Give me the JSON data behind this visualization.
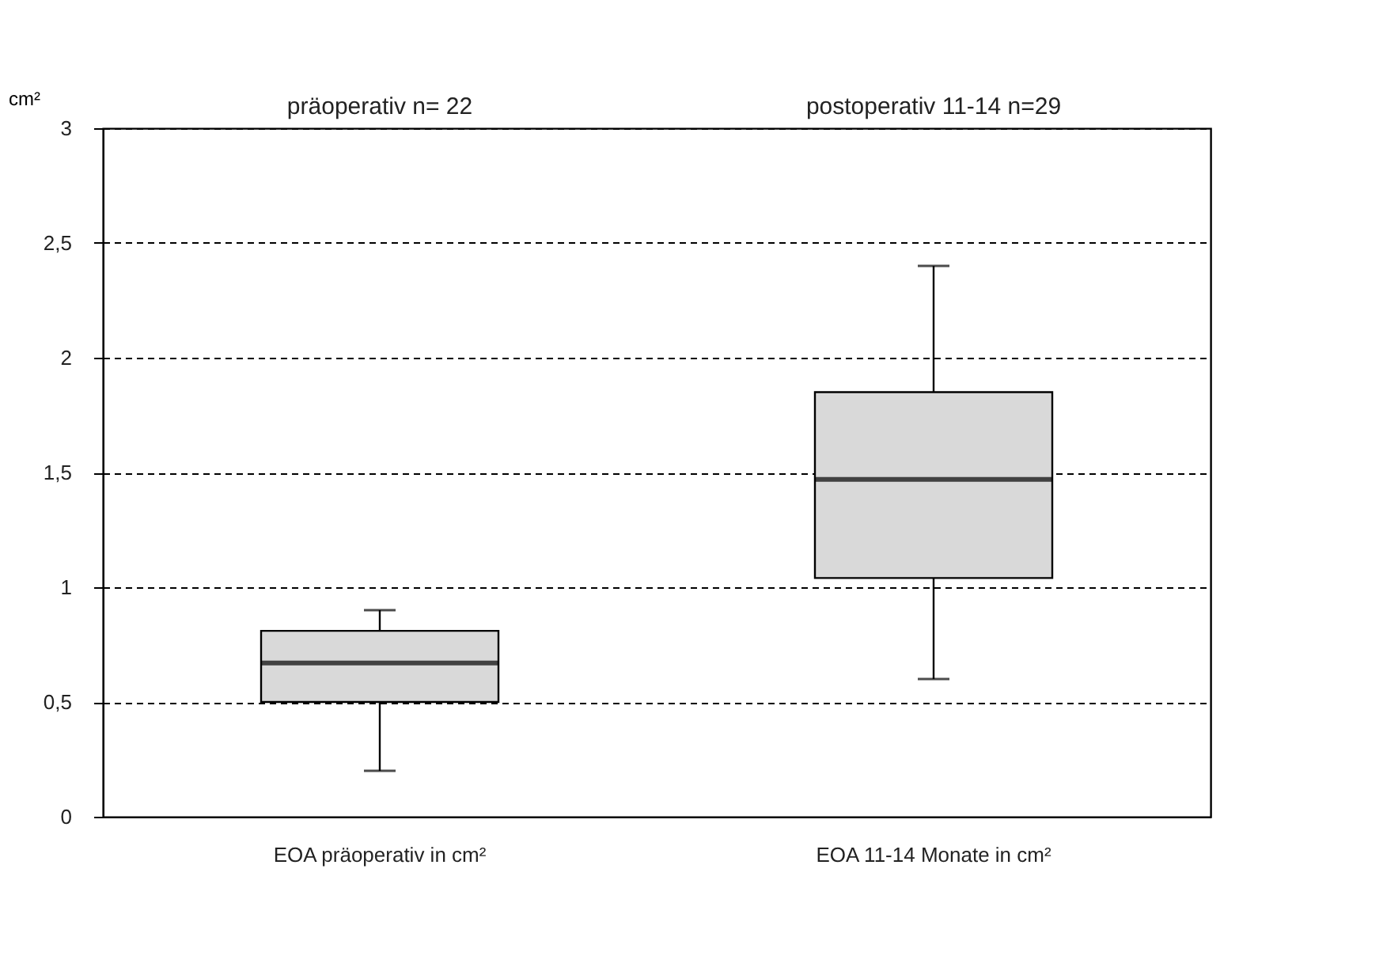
{
  "chart_data": {
    "type": "box",
    "ylabel": "cm²",
    "categories": [
      "EOA präoperativ in cm²",
      "EOA 11-14 Monate in cm²"
    ],
    "series": [
      {
        "color": "#d9d9d9",
        "boxes": [
          {
            "low": 0.2,
            "q1": 0.5,
            "median": 0.67,
            "q3": 0.81,
            "high": 0.9
          },
          {
            "low": 0.6,
            "q1": 1.04,
            "median": 1.47,
            "q3": 1.85,
            "high": 2.4
          }
        ]
      }
    ],
    "annotations": [
      "präoperativ n= 22",
      "postoperativ 11-14 n=29"
    ],
    "ylim": [
      0,
      3
    ],
    "yticks": [
      0,
      {
        "value": 0.5,
        "label": "0,5"
      },
      1,
      {
        "value": 1.5,
        "label": "1,5"
      },
      2,
      {
        "value": 2.5,
        "label": "2,5"
      },
      3
    ],
    "grid": "y"
  }
}
